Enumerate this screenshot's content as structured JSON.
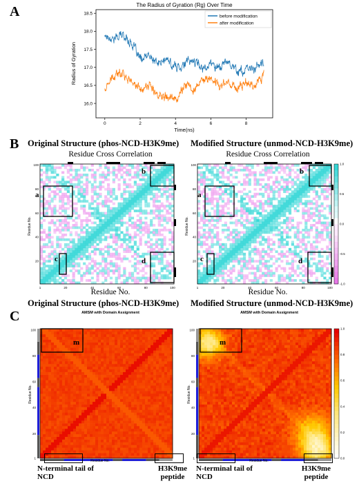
{
  "panels": {
    "a": {
      "letter": "A"
    },
    "b": {
      "letter": "B",
      "left_subtitle": "Original Structure (phos-NCD-H3K9me)",
      "right_subtitle": "Modified Structure (unmod-NCD-H3K9me)",
      "region_labels": [
        "a",
        "b",
        "c",
        "d"
      ]
    },
    "c": {
      "letter": "C",
      "left_subtitle": "Original Structure (phos-NCD-H3K9me)",
      "right_subtitle": "Modified Structure (unmod-NCD-H3K9me)",
      "region_label": "m",
      "bottom_left_label": "N-terminal tail of NCD",
      "bottom_right_label": "H3K9me peptide",
      "colors": {
        "low": "#ffffff",
        "mid": "#ffd21e",
        "high": "#e60000",
        "domain_blue": "#1f1fd8",
        "domain_gray": "#555555"
      }
    }
  },
  "chart_data": [
    {
      "type": "line",
      "title": "The Radius of Gyration (Rg) Over Time",
      "xlabel": "Time(ns)",
      "ylabel": "Radius of Gyration",
      "xlim": [
        -0.5,
        9.5
      ],
      "ylim": [
        15.6,
        18.6
      ],
      "xticks": [
        0,
        2,
        4,
        6,
        8
      ],
      "yticks": [
        16.0,
        16.5,
        17.0,
        17.5,
        18.0,
        18.5
      ],
      "legend_position": "top-right",
      "series": [
        {
          "name": "before modification",
          "color": "#1f77b4",
          "x": [
            0,
            0.5,
            1.0,
            1.5,
            2.0,
            2.5,
            3.0,
            3.5,
            4.0,
            4.5,
            5.0,
            5.5,
            6.0,
            6.5,
            7.0,
            7.5,
            8.0,
            8.5,
            9.0
          ],
          "y": [
            17.9,
            17.8,
            17.9,
            17.7,
            17.2,
            17.3,
            17.1,
            17.2,
            17.0,
            17.1,
            17.2,
            17.0,
            17.1,
            17.0,
            17.2,
            16.9,
            16.9,
            17.0,
            17.1
          ]
        },
        {
          "name": "after modification",
          "color": "#ff7f0e",
          "x": [
            0,
            0.5,
            1.0,
            1.5,
            2.0,
            2.5,
            3.0,
            3.5,
            4.0,
            4.5,
            5.0,
            5.5,
            6.0,
            6.5,
            7.0,
            7.5,
            8.0,
            8.5,
            9.0
          ],
          "y": [
            16.4,
            16.7,
            16.9,
            16.6,
            16.4,
            16.5,
            16.2,
            16.3,
            16.1,
            16.5,
            16.4,
            16.6,
            16.7,
            16.5,
            16.6,
            16.4,
            16.6,
            16.5,
            16.8
          ]
        }
      ]
    },
    {
      "type": "heatmap",
      "title": "Residue Cross Correlation",
      "xlabel": "Residue No.",
      "ylabel": "Residue No.",
      "xticks": [
        1,
        20,
        40,
        60,
        80,
        100
      ],
      "yticks": [
        20,
        40,
        60,
        80,
        100
      ],
      "colorbar_ticks": [
        -1.0,
        -0.5,
        0.0,
        0.5,
        1.0
      ],
      "colors": {
        "negative": "#e878e8",
        "positive": "#33d6d6"
      }
    },
    {
      "type": "heatmap",
      "title": "AMSM with Domain Assignment",
      "xlabel": "Residue No.",
      "ylabel": "Residue No.",
      "xticks": [
        1,
        20,
        40,
        60,
        80,
        100
      ],
      "yticks": [
        1,
        20,
        40,
        60,
        80,
        100
      ],
      "colorbar_ticks": [
        0.0,
        0.2,
        0.4,
        0.6,
        0.8,
        1.0
      ]
    }
  ]
}
